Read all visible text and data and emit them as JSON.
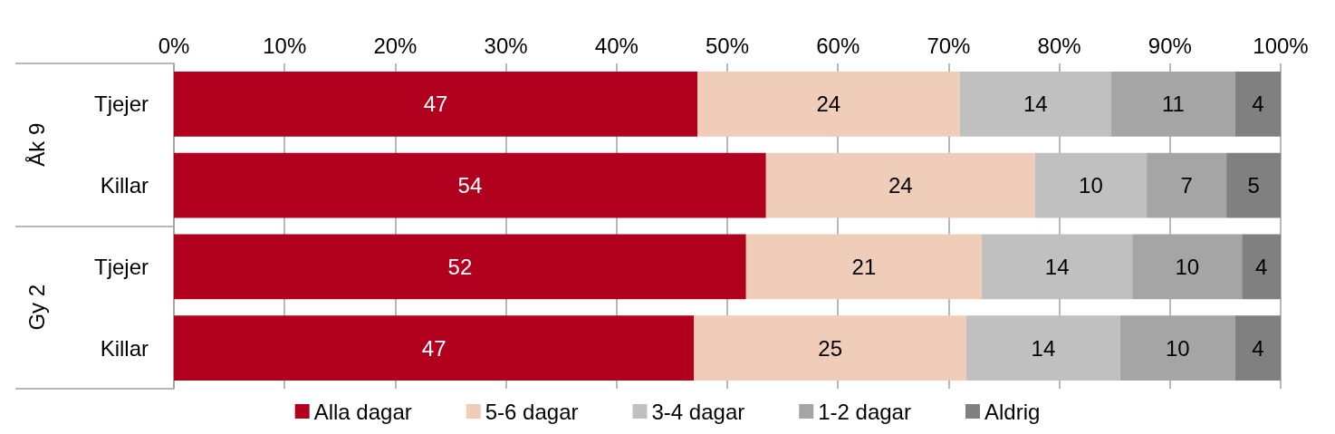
{
  "chart_data": {
    "type": "bar",
    "orientation": "horizontal",
    "stacked": true,
    "categories": [
      "Tjejer",
      "Killar",
      "Tjejer",
      "Killar"
    ],
    "annotations": [
      "Åk 9",
      "Gy 2"
    ],
    "series": [
      {
        "name": "Alla dagar",
        "color": "#b0001e",
        "values": [
          47.3,
          53.5,
          51.7,
          47.0
        ],
        "value_labels": [
          "47",
          "54",
          "52",
          "47"
        ]
      },
      {
        "name": "5-6 dagar",
        "color": "#efcdb9",
        "values": [
          23.7,
          24.3,
          21.3,
          24.6
        ],
        "value_labels": [
          "24",
          "24",
          "21",
          "25"
        ]
      },
      {
        "name": "3-4 dagar",
        "color": "#c0c0c0",
        "values": [
          13.7,
          10.1,
          13.6,
          13.9
        ],
        "value_labels": [
          "14",
          "10",
          "14",
          "14"
        ]
      },
      {
        "name": "1-2 dagar",
        "color": "#a5a5a5",
        "values": [
          11.2,
          7.2,
          9.9,
          10.4
        ],
        "value_labels": [
          "11",
          "7",
          "10",
          "10"
        ]
      },
      {
        "name": "Aldrig",
        "color": "#808080",
        "values": [
          4.1,
          4.9,
          3.5,
          4.1
        ],
        "value_labels": [
          "4",
          "5",
          "4",
          "4"
        ]
      }
    ],
    "xlim": [
      0,
      100
    ],
    "xticks": [
      {
        "value": 0,
        "label": "0%"
      },
      {
        "value": 10,
        "label": "10%"
      },
      {
        "value": 20,
        "label": "20%"
      },
      {
        "value": 30,
        "label": "30%"
      },
      {
        "value": 40,
        "label": "40%"
      },
      {
        "value": 50,
        "label": "50%"
      },
      {
        "value": 60,
        "label": "60%"
      },
      {
        "value": 70,
        "label": "70%"
      },
      {
        "value": 80,
        "label": "80%"
      },
      {
        "value": 90,
        "label": "90%"
      },
      {
        "value": 100,
        "label": "100%"
      }
    ],
    "grid": "x",
    "legend": "bottom"
  }
}
